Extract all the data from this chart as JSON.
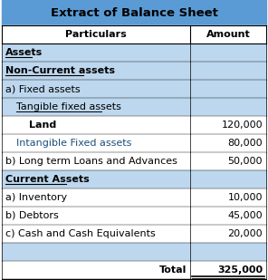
{
  "title": "Extract of Balance Sheet",
  "header": [
    "Particulars",
    "Amount"
  ],
  "rows": [
    {
      "label": "Assets",
      "amount": "",
      "style": "assets_header",
      "indent": 0
    },
    {
      "label": "Non-Current assets",
      "amount": "",
      "style": "section_bold",
      "indent": 0
    },
    {
      "label": "a) Fixed assets",
      "amount": "",
      "style": "normal",
      "indent": 0
    },
    {
      "label": "Tangible fixed assets",
      "amount": "",
      "style": "underline",
      "indent": 1
    },
    {
      "label": "Land",
      "amount": "120,000",
      "style": "bold",
      "indent": 2
    },
    {
      "label": "Intangible Fixed assets",
      "amount": "80,000",
      "style": "normal_blue",
      "indent": 1
    },
    {
      "label": "b) Long term Loans and Advances",
      "amount": "50,000",
      "style": "normal",
      "indent": 0
    },
    {
      "label": "Current Assets",
      "amount": "",
      "style": "section_bold",
      "indent": 0
    },
    {
      "label": "a) Inventory",
      "amount": "10,000",
      "style": "normal",
      "indent": 0
    },
    {
      "label": "b) Debtors",
      "amount": "45,000",
      "style": "normal",
      "indent": 0
    },
    {
      "label": "c) Cash and Cash Equivalents",
      "amount": "20,000",
      "style": "normal",
      "indent": 0
    },
    {
      "label": "",
      "amount": "",
      "style": "empty",
      "indent": 0
    },
    {
      "label": "Total",
      "amount": "325,000",
      "style": "total",
      "indent": 0
    }
  ],
  "bg_header": "#5B9BD5",
  "bg_light": "#BDD7EE",
  "bg_white": "#FFFFFF",
  "text_dark": "#000000",
  "text_blue": "#1F4E79",
  "blue_bg_indices": [
    0,
    1,
    2,
    3,
    7,
    11
  ]
}
